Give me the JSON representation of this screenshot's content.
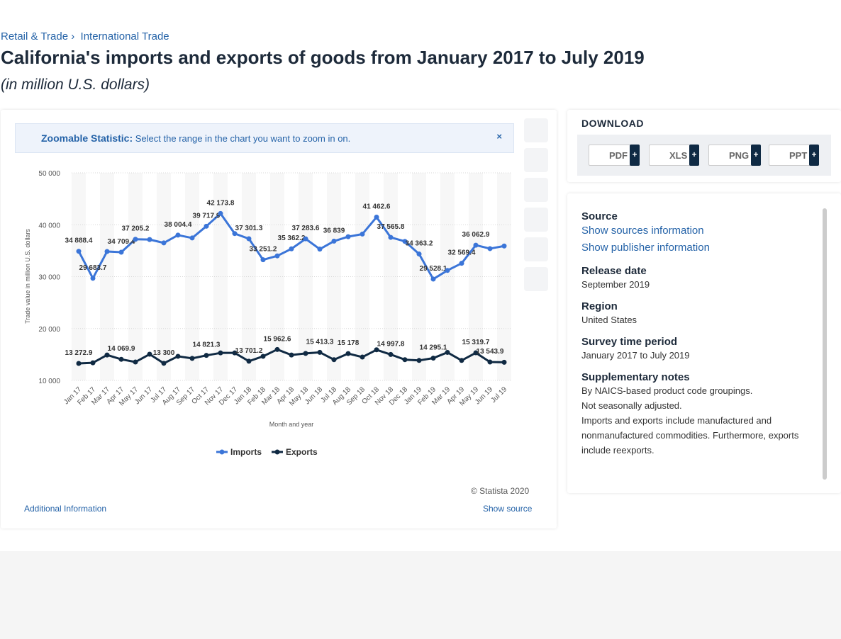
{
  "breadcrumb": [
    "Retail & Trade",
    "International Trade"
  ],
  "header": {
    "title": "California's imports and exports of goods from January 2017 to July 2019",
    "subtitle": "(in million U.S. dollars)"
  },
  "zoom": {
    "label": "Zoomable Statistic:",
    "text": "Select the range in the chart you want to zoom in on."
  },
  "chart_data": {
    "type": "line",
    "categories": [
      "Jan 17",
      "Feb 17",
      "Mar 17",
      "Apr 17",
      "May 17",
      "Jun 17",
      "Jul 17",
      "Aug 17",
      "Sep 17",
      "Oct 17",
      "Nov 17",
      "Dec 17",
      "Jan 18",
      "Feb 18",
      "Mar 18",
      "Apr 18",
      "May 18",
      "Jun 18",
      "Jul 18",
      "Aug 18",
      "Sep 18",
      "Oct 18",
      "Nov 18",
      "Dec 18",
      "Jan 19",
      "Feb 19",
      "Mar 19",
      "Apr 19",
      "May 19",
      "Jun 19",
      "Jul 19"
    ],
    "series": [
      {
        "name": "Imports",
        "color": "#3b75d8",
        "values": [
          34888.4,
          29683.7,
          34850,
          34709.4,
          37205.2,
          37150,
          36500,
          38004.4,
          37450,
          39717.9,
          42173.8,
          38300,
          37301.3,
          33251.2,
          34000,
          35362.2,
          37283.6,
          35300,
          36839,
          37700,
          38200,
          41462.6,
          37565.8,
          36800,
          34363.2,
          29528.1,
          31200,
          32569.4,
          36062.9,
          35400,
          35900
        ],
        "value_labels": [
          "34 888.4",
          "29 683.7",
          null,
          "34 709.4",
          "37 205.2",
          null,
          null,
          "38 004.4",
          null,
          "39 717.9",
          "42 173.8",
          null,
          "37 301.3",
          "33 251.2",
          null,
          "35 362.2",
          "37 283.6",
          null,
          "36 839",
          null,
          null,
          "41 462.6",
          "37 565.8",
          null,
          "34 363.2",
          "29 528.1",
          null,
          "32 569.4",
          "36 062.9",
          null,
          null
        ]
      },
      {
        "name": "Exports",
        "color": "#102a43",
        "values": [
          13272.9,
          13400,
          14900,
          14069.9,
          13550,
          15050,
          13300,
          14650,
          14250,
          14821.3,
          15300,
          15300,
          13701.2,
          14650,
          15962.6,
          14900,
          15200,
          15413.3,
          14000,
          15178,
          14500,
          15900,
          14997.8,
          14000,
          13850,
          14295.1,
          15400,
          13850,
          15319.7,
          13543.9,
          13500
        ],
        "value_labels": [
          "13 272.9",
          null,
          null,
          "14 069.9",
          null,
          null,
          "13 300",
          null,
          null,
          "14 821.3",
          null,
          null,
          "13 701.2",
          null,
          "15 962.6",
          null,
          null,
          "15 413.3",
          null,
          "15 178",
          null,
          null,
          "14 997.8",
          null,
          null,
          "14 295.1",
          null,
          null,
          "15 319.7",
          "13 543.9",
          null
        ]
      }
    ],
    "ylim": [
      10000,
      50000
    ],
    "yticks": [
      {
        "value": 10000,
        "label": "10 000"
      },
      {
        "value": 20000,
        "label": "20 000"
      },
      {
        "value": 30000,
        "label": "30 000"
      },
      {
        "value": 40000,
        "label": "40 000"
      },
      {
        "value": 50000,
        "label": "50 000"
      }
    ],
    "y_label": "Trade value in million U.S. dollars",
    "x_label": "Month and year",
    "grid": true,
    "legend": "bottom"
  },
  "footer": {
    "copyright": "© Statista 2020",
    "additional": "Additional Information",
    "source": "Show source"
  },
  "download": {
    "title": "DOWNLOAD",
    "formats": [
      "PDF",
      "XLS",
      "PNG",
      "PPT"
    ]
  },
  "info": [
    {
      "heading": "Source",
      "lines": [
        "Show sources information",
        "Show publisher information"
      ]
    },
    {
      "heading": "Release date",
      "lines": [
        "September 2019"
      ]
    },
    {
      "heading": "Region",
      "lines": [
        "United States"
      ]
    },
    {
      "heading": "Survey time period",
      "lines": [
        "January 2017 to July 2019"
      ]
    },
    {
      "heading": "Supplementary notes",
      "lines": [
        "By NAICS-based product code groupings.",
        "Not seasonally adjusted.",
        "Imports and exports include manufactured and nonmanufactured commodities. Furthermore, exports include reexports."
      ]
    }
  ]
}
